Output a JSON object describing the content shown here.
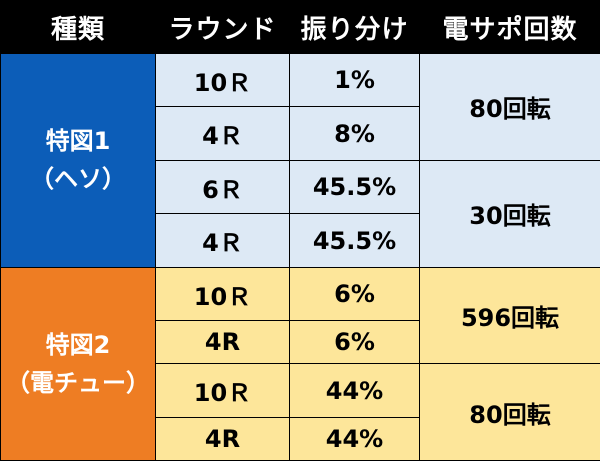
{
  "header": {
    "col1": "種類",
    "col2": "ラウンド",
    "col3": "振り分け",
    "col4": "電サポ回数"
  },
  "group1": {
    "name_line1": "特図1",
    "name_line2": "（ヘソ）",
    "rows": [
      {
        "round": "10Ｒ",
        "pct": "1%"
      },
      {
        "round": "4Ｒ",
        "pct": "8%"
      },
      {
        "round": "6Ｒ",
        "pct": "45.5%"
      },
      {
        "round": "4Ｒ",
        "pct": "45.5%"
      }
    ],
    "support": [
      "80回転",
      "30回転"
    ]
  },
  "group2": {
    "name_line1": "特図2",
    "name_line2": "（電チュー）",
    "rows": [
      {
        "round": "10Ｒ",
        "pct": "6%"
      },
      {
        "round": "4R",
        "pct": "6%"
      },
      {
        "round": "10Ｒ",
        "pct": "44%"
      },
      {
        "round": "4R",
        "pct": "44%"
      }
    ],
    "support": [
      "596回転",
      "80回転"
    ]
  },
  "colors": {
    "blue_header": "#0c5db8",
    "orange_header": "#ee7d23",
    "blue_cell": "#dde9f5",
    "yellow_cell": "#fde69a"
  }
}
